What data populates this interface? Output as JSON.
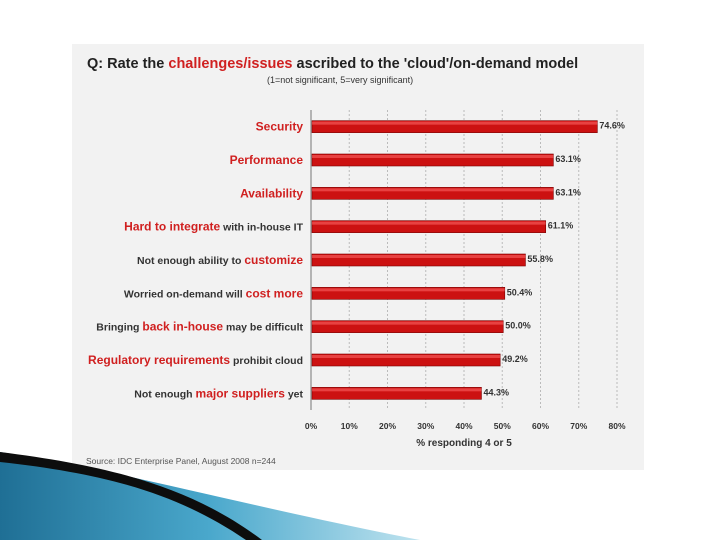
{
  "title": {
    "prefix": "Q: Rate the ",
    "highlight": "challenges/issues",
    "suffix": " ascribed to the 'cloud'/on-demand model"
  },
  "subtitle": "(1=not significant, 5=very significant)",
  "source": "Source: IDC Enterprise Panel, August 2008  n=244",
  "colors": {
    "bar": "#cc1111",
    "highlight": "#d02020",
    "grid": "#bbbbbb",
    "panel": "#f2f2f2"
  },
  "chart_data": {
    "type": "bar",
    "orientation": "horizontal",
    "xlabel": "% responding 4 or 5",
    "xlim": [
      0,
      80
    ],
    "xticks": [
      "0%",
      "10%",
      "20%",
      "30%",
      "40%",
      "50%",
      "60%",
      "70%",
      "80%"
    ],
    "grid": true,
    "categories": [
      [
        {
          "t": "Security",
          "h": true
        }
      ],
      [
        {
          "t": "Performance",
          "h": true
        }
      ],
      [
        {
          "t": "Availability",
          "h": true
        }
      ],
      [
        {
          "t": "Hard to integrate",
          "h": true
        },
        {
          "t": " with in-house IT",
          "h": false
        }
      ],
      [
        {
          "t": "Not enough ability to ",
          "h": false
        },
        {
          "t": "customize",
          "h": true
        }
      ],
      [
        {
          "t": "Worried on-demand will ",
          "h": false
        },
        {
          "t": "cost more",
          "h": true
        }
      ],
      [
        {
          "t": "Bringing ",
          "h": false
        },
        {
          "t": "back in-house",
          "h": true
        },
        {
          "t": " may be difficult",
          "h": false
        }
      ],
      [
        {
          "t": "Regulatory requirements",
          "h": true
        },
        {
          "t": " prohibit cloud",
          "h": false
        }
      ],
      [
        {
          "t": "Not enough ",
          "h": false
        },
        {
          "t": "major suppliers",
          "h": true
        },
        {
          "t": " yet",
          "h": false
        }
      ]
    ],
    "values": [
      74.6,
      63.1,
      63.1,
      61.1,
      55.8,
      50.4,
      50.0,
      49.2,
      44.3
    ],
    "value_labels": [
      "74.6%",
      "63.1%",
      "63.1%",
      "61.1%",
      "55.8%",
      "50.4%",
      "50.0%",
      "49.2%",
      "44.3%"
    ]
  }
}
